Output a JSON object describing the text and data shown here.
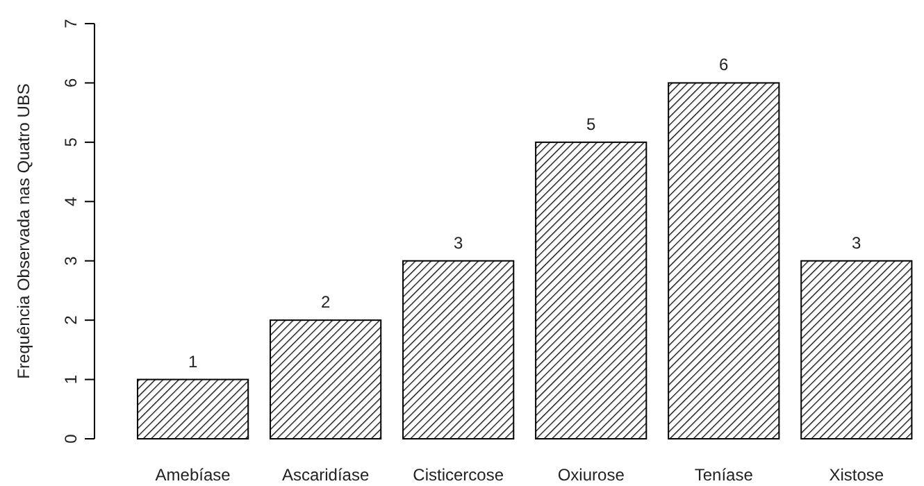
{
  "chart_data": {
    "type": "bar",
    "ylabel": "Frequência Observada nas Quatro UBS",
    "categories": [
      "Amebíase",
      "Ascaridíase",
      "Cisticercose",
      "Oxiurose",
      "Teníase",
      "Xistose"
    ],
    "values": [
      1,
      2,
      3,
      5,
      6,
      3
    ],
    "color": "#000000",
    "ylim": [
      0,
      7
    ],
    "yticks": [
      0,
      1,
      2,
      3,
      4,
      5,
      6,
      7
    ],
    "data_labels": true,
    "grid": false
  }
}
